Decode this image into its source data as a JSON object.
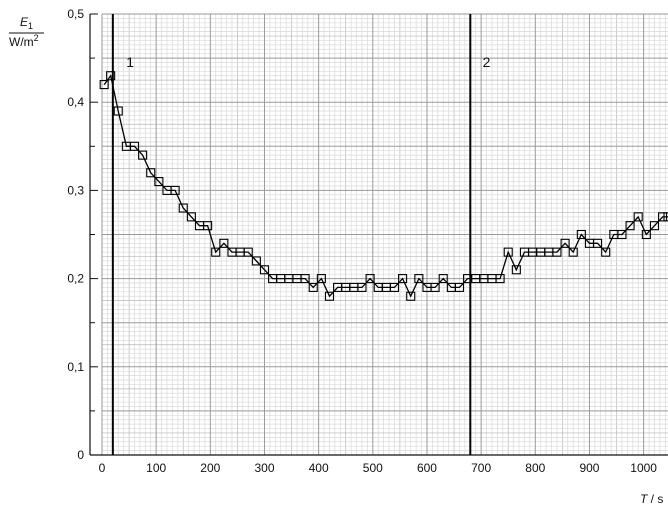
{
  "chart_data": {
    "type": "line",
    "ylabel_symbol": "E",
    "ylabel_subscript": "1",
    "ylabel_unit": "W/m",
    "ylabel_unit_exp": "2",
    "xlabel_symbol": "T",
    "xlabel_unit": " / s",
    "xlim": [
      0,
      1045
    ],
    "ylim": [
      0,
      0.5
    ],
    "grid": true,
    "x_ticks": [
      0,
      100,
      200,
      300,
      400,
      500,
      600,
      700,
      800,
      900,
      1000
    ],
    "x_tick_labels": [
      "0",
      "100",
      "200",
      "300",
      "400",
      "500",
      "600",
      "700",
      "800",
      "900",
      "1000"
    ],
    "y_ticks": [
      0,
      0.1,
      0.2,
      0.3,
      0.4,
      0.5
    ],
    "y_tick_labels": [
      "0",
      "0,1",
      "0,2",
      "0,3",
      "0,4",
      "0,5"
    ],
    "annotations": [
      {
        "x": 20,
        "text": "1",
        "label_x": 52,
        "label_y": 0.44
      },
      {
        "x": 680,
        "text": "2",
        "label_x": 710,
        "label_y": 0.44
      }
    ],
    "series": [
      {
        "marker": "square",
        "x": [
          4,
          16,
          30,
          45,
          60,
          75,
          90,
          105,
          120,
          135,
          150,
          165,
          180,
          195,
          210,
          225,
          240,
          255,
          270,
          285,
          300,
          315,
          330,
          345,
          360,
          375,
          390,
          405,
          420,
          435,
          450,
          465,
          480,
          495,
          510,
          525,
          540,
          555,
          570,
          585,
          600,
          615,
          630,
          645,
          660,
          675,
          690,
          705,
          720,
          735,
          750,
          765,
          780,
          795,
          810,
          825,
          840,
          855,
          870,
          885,
          900,
          915,
          930,
          945,
          960,
          975,
          990,
          1005,
          1020,
          1035,
          1045
        ],
        "y": [
          0.42,
          0.43,
          0.39,
          0.35,
          0.35,
          0.34,
          0.32,
          0.31,
          0.3,
          0.3,
          0.28,
          0.27,
          0.26,
          0.26,
          0.23,
          0.24,
          0.23,
          0.23,
          0.23,
          0.22,
          0.21,
          0.2,
          0.2,
          0.2,
          0.2,
          0.2,
          0.19,
          0.2,
          0.18,
          0.19,
          0.19,
          0.19,
          0.19,
          0.2,
          0.19,
          0.19,
          0.19,
          0.2,
          0.18,
          0.2,
          0.19,
          0.19,
          0.2,
          0.19,
          0.19,
          0.2,
          0.2,
          0.2,
          0.2,
          0.2,
          0.23,
          0.21,
          0.23,
          0.23,
          0.23,
          0.23,
          0.23,
          0.24,
          0.23,
          0.25,
          0.24,
          0.24,
          0.23,
          0.25,
          0.25,
          0.26,
          0.27,
          0.25,
          0.26,
          0.27,
          0.27
        ]
      }
    ]
  }
}
